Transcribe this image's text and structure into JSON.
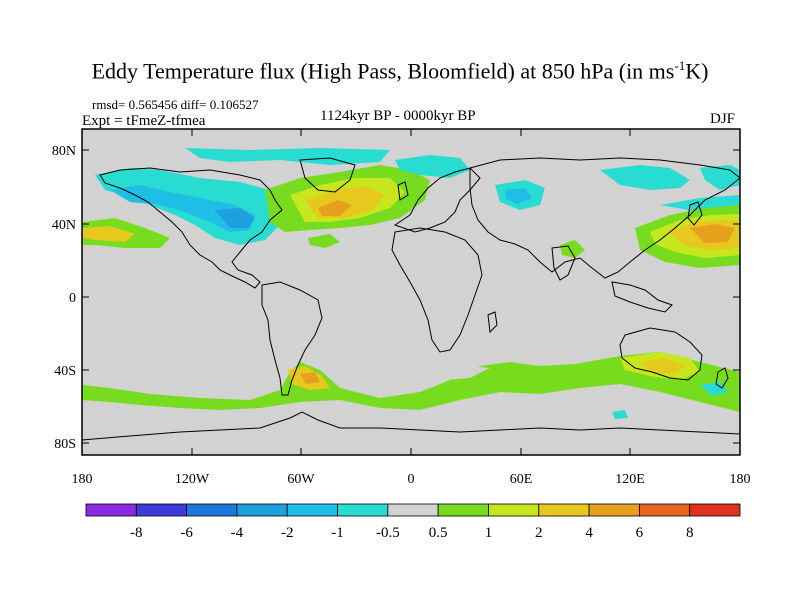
{
  "header": {
    "title_main": "Eddy Temperature flux (High Pass, Bloomfield) at 850 hPa (in ms",
    "title_sup": "-1",
    "title_end": "K)",
    "stats": "rmsd= 0.565456 diff= 0.106527",
    "experiment": "Expt = tFmeZ-tfmea",
    "period": "1124kyr BP - 0000kyr BP",
    "season": "DJF"
  },
  "map": {
    "lat_labels": [
      "80N",
      "40N",
      "0",
      "40S",
      "80S"
    ],
    "lon_labels": [
      "180",
      "120W",
      "60W",
      "0",
      "60E",
      "120E",
      "180"
    ]
  },
  "colorbar": {
    "labels": [
      "-8",
      "-6",
      "-4",
      "-2",
      "-1",
      "-0.5",
      "0.5",
      "1",
      "2",
      "4",
      "6",
      "8"
    ],
    "colors": [
      "#8a2be2",
      "#3c3cdc",
      "#1e78dc",
      "#1ea0dc",
      "#1ebee6",
      "#28dcd2",
      "#d2d2d2",
      "#78dc1e",
      "#c8e61e",
      "#e6c81e",
      "#e6a01e",
      "#e6641e",
      "#dc321e"
    ]
  },
  "colors": {
    "background": "#d2d2d2",
    "cyan": "#28dcd2",
    "light_blue": "#1ebee6",
    "blue": "#1ea0dc",
    "green": "#78dc1e",
    "yellow_green": "#c8e61e",
    "yellow": "#e6c81e",
    "orange": "#e6a01e"
  }
}
